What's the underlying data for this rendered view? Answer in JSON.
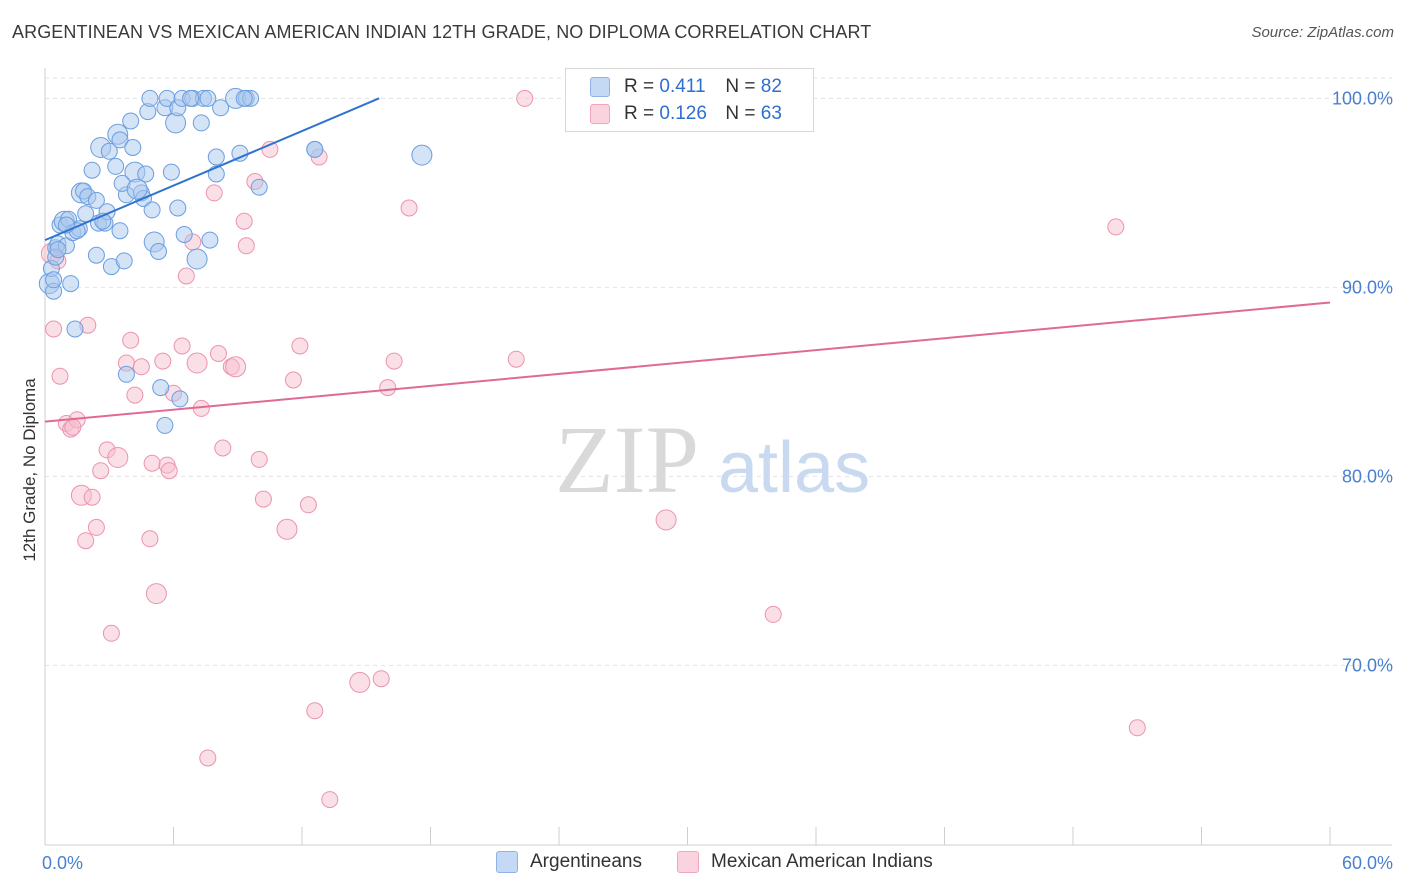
{
  "title": "ARGENTINEAN VS MEXICAN AMERICAN INDIAN 12TH GRADE, NO DIPLOMA CORRELATION CHART",
  "source": "Source: ZipAtlas.com",
  "watermark": {
    "zip": "ZIP",
    "atlas": "atlas"
  },
  "colors": {
    "blue_fill": "#a9c8ee",
    "blue_stroke": "#6a9ee0",
    "blue_line": "#2f73cf",
    "pink_fill": "#f6c0d0",
    "pink_stroke": "#ec93ad",
    "pink_line": "#e06a95",
    "axis_text": "#4a7fd0",
    "grid": "#e3e3e3"
  },
  "legend": {
    "r_label": "R =",
    "n_label": "N =",
    "series": [
      {
        "name": "Argentineans",
        "r": "0.411",
        "n": "82"
      },
      {
        "name": "Mexican American Indians",
        "r": "0.126",
        "n": "63"
      }
    ]
  },
  "chart_data": {
    "type": "scatter",
    "title": "ARGENTINEAN VS MEXICAN AMERICAN INDIAN 12TH GRADE, NO DIPLOMA CORRELATION CHART",
    "xlabel": "",
    "ylabel": "12th Grade, No Diploma",
    "xlim": [
      0,
      60
    ],
    "ylim": [
      60.5,
      101.5
    ],
    "x_tick_labels": [
      "0.0%",
      "60.0%"
    ],
    "y_ticks": [
      70,
      80,
      90,
      100
    ],
    "y_tick_labels": [
      "70.0%",
      "80.0%",
      "90.0%",
      "100.0%"
    ],
    "grid": true,
    "legend_position": "top-center",
    "series": [
      {
        "name": "Argentineans",
        "color": "#a9c8ee",
        "trend": {
          "x": [
            0,
            15.6
          ],
          "y": [
            92.5,
            100
          ]
        },
        "points": [
          [
            0.2,
            90.2
          ],
          [
            0.4,
            89.8
          ],
          [
            0.3,
            91.0
          ],
          [
            0.5,
            92.1
          ],
          [
            0.6,
            92.3
          ],
          [
            0.5,
            91.6
          ],
          [
            0.7,
            93.3
          ],
          [
            0.9,
            93.5
          ],
          [
            1.1,
            93.6
          ],
          [
            1.0,
            92.2
          ],
          [
            1.3,
            92.9
          ],
          [
            1.2,
            90.2
          ],
          [
            1.4,
            87.8
          ],
          [
            1.6,
            93.1
          ],
          [
            1.7,
            95.0
          ],
          [
            1.8,
            95.1
          ],
          [
            2.0,
            94.8
          ],
          [
            2.2,
            96.2
          ],
          [
            2.4,
            94.6
          ],
          [
            2.5,
            93.4
          ],
          [
            2.4,
            91.7
          ],
          [
            2.6,
            97.4
          ],
          [
            2.8,
            93.4
          ],
          [
            2.9,
            94.0
          ],
          [
            3.0,
            97.2
          ],
          [
            3.3,
            96.4
          ],
          [
            3.1,
            91.1
          ],
          [
            3.5,
            93.0
          ],
          [
            3.4,
            98.1
          ],
          [
            3.5,
            97.8
          ],
          [
            3.7,
            91.4
          ],
          [
            3.8,
            85.4
          ],
          [
            3.8,
            94.9
          ],
          [
            4.0,
            98.8
          ],
          [
            4.1,
            97.4
          ],
          [
            4.2,
            96.1
          ],
          [
            4.5,
            95.0
          ],
          [
            4.6,
            94.7
          ],
          [
            4.7,
            96.0
          ],
          [
            4.8,
            99.3
          ],
          [
            4.9,
            100.0
          ],
          [
            5.0,
            94.1
          ],
          [
            5.1,
            92.4
          ],
          [
            5.3,
            91.9
          ],
          [
            5.4,
            84.7
          ],
          [
            5.6,
            99.5
          ],
          [
            5.7,
            100.0
          ],
          [
            5.6,
            82.7
          ],
          [
            5.9,
            96.1
          ],
          [
            6.1,
            98.7
          ],
          [
            6.2,
            99.5
          ],
          [
            6.2,
            94.2
          ],
          [
            6.4,
            100.0
          ],
          [
            6.3,
            84.1
          ],
          [
            6.5,
            92.8
          ],
          [
            6.9,
            100.0
          ],
          [
            7.1,
            91.5
          ],
          [
            7.3,
            98.7
          ],
          [
            7.4,
            100.0
          ],
          [
            7.6,
            100.0
          ],
          [
            7.7,
            92.5
          ],
          [
            8.0,
            96.9
          ],
          [
            8.0,
            96.0
          ],
          [
            8.9,
            100.0
          ],
          [
            9.1,
            97.1
          ],
          [
            9.4,
            100.0
          ],
          [
            9.6,
            100.0
          ],
          [
            10.0,
            95.3
          ],
          [
            12.6,
            97.3
          ],
          [
            12.6,
            97.3
          ],
          [
            17.6,
            97.0
          ],
          [
            0.4,
            90.4
          ],
          [
            0.6,
            92.0
          ],
          [
            1.5,
            93.0
          ],
          [
            1.9,
            93.9
          ],
          [
            2.7,
            93.5
          ],
          [
            3.6,
            95.5
          ],
          [
            4.3,
            95.2
          ],
          [
            6.8,
            100.0
          ],
          [
            8.2,
            99.5
          ],
          [
            9.3,
            100.0
          ],
          [
            1.0,
            93.3
          ]
        ]
      },
      {
        "name": "Mexican American Indians",
        "color": "#f6c0d0",
        "trend": {
          "x": [
            0,
            60
          ],
          "y": [
            82.9,
            89.2
          ]
        },
        "points": [
          [
            0.3,
            91.8
          ],
          [
            0.4,
            87.8
          ],
          [
            0.7,
            85.3
          ],
          [
            0.6,
            91.4
          ],
          [
            1.0,
            82.8
          ],
          [
            1.2,
            82.5
          ],
          [
            1.5,
            83.0
          ],
          [
            1.7,
            79.0
          ],
          [
            1.9,
            76.6
          ],
          [
            2.2,
            78.9
          ],
          [
            2.4,
            77.3
          ],
          [
            2.6,
            80.3
          ],
          [
            2.9,
            81.4
          ],
          [
            3.1,
            71.7
          ],
          [
            3.4,
            81.0
          ],
          [
            3.8,
            86.0
          ],
          [
            4.0,
            87.2
          ],
          [
            4.2,
            84.3
          ],
          [
            4.5,
            85.8
          ],
          [
            4.9,
            76.7
          ],
          [
            5.0,
            80.7
          ],
          [
            5.2,
            73.8
          ],
          [
            5.7,
            80.6
          ],
          [
            5.8,
            80.3
          ],
          [
            6.0,
            84.4
          ],
          [
            6.4,
            86.9
          ],
          [
            6.6,
            90.6
          ],
          [
            6.9,
            92.4
          ],
          [
            7.1,
            86.0
          ],
          [
            7.3,
            83.6
          ],
          [
            7.6,
            65.1
          ],
          [
            7.9,
            95.0
          ],
          [
            8.1,
            86.5
          ],
          [
            8.3,
            81.5
          ],
          [
            8.7,
            85.8
          ],
          [
            8.9,
            85.8
          ],
          [
            9.3,
            93.5
          ],
          [
            9.4,
            92.2
          ],
          [
            9.8,
            95.6
          ],
          [
            10.0,
            80.9
          ],
          [
            10.2,
            78.8
          ],
          [
            10.5,
            97.3
          ],
          [
            11.3,
            77.2
          ],
          [
            11.6,
            85.1
          ],
          [
            11.9,
            86.9
          ],
          [
            12.3,
            78.5
          ],
          [
            12.6,
            67.6
          ],
          [
            12.8,
            96.9
          ],
          [
            13.3,
            62.9
          ],
          [
            14.7,
            69.1
          ],
          [
            15.7,
            69.3
          ],
          [
            16.0,
            84.7
          ],
          [
            16.3,
            86.1
          ],
          [
            17.0,
            94.2
          ],
          [
            22.0,
            86.2
          ],
          [
            22.4,
            100.0
          ],
          [
            29.0,
            77.7
          ],
          [
            34.0,
            72.7
          ],
          [
            50.0,
            93.2
          ],
          [
            51.0,
            66.7
          ],
          [
            1.3,
            82.6
          ],
          [
            2.0,
            88.0
          ],
          [
            5.5,
            86.1
          ]
        ]
      }
    ]
  }
}
